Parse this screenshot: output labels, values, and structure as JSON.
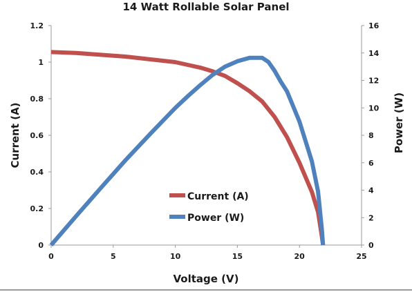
{
  "chart_data": {
    "type": "line",
    "title": "14 Watt Rollable Solar Panel",
    "xlabel": "Voltage (V)",
    "ylabel": "Current (A)",
    "y2label": "Power (W)",
    "xlim": [
      0,
      25
    ],
    "ylim": [
      0,
      1.2
    ],
    "y2lim": [
      0,
      16
    ],
    "x_ticks": [
      "0",
      "5",
      "10",
      "15",
      "20",
      "25"
    ],
    "y_ticks": [
      "0",
      "0.2",
      "0.4",
      "0.6",
      "0.8",
      "1",
      "1.2"
    ],
    "y2_ticks": [
      "0",
      "2",
      "4",
      "6",
      "8",
      "10",
      "12",
      "14",
      "16"
    ],
    "grid": false,
    "legend": "center",
    "series": [
      {
        "name": "Current (A)",
        "axis": "left",
        "color": "#c0504d",
        "points": [
          [
            0,
            1.055
          ],
          [
            2,
            1.05
          ],
          [
            4,
            1.04
          ],
          [
            6,
            1.03
          ],
          [
            8,
            1.015
          ],
          [
            10,
            1.0
          ],
          [
            11,
            0.985
          ],
          [
            12,
            0.97
          ],
          [
            13,
            0.95
          ],
          [
            14,
            0.925
          ],
          [
            15,
            0.885
          ],
          [
            16,
            0.84
          ],
          [
            17,
            0.785
          ],
          [
            18,
            0.7
          ],
          [
            19,
            0.59
          ],
          [
            20,
            0.45
          ],
          [
            21,
            0.29
          ],
          [
            21.5,
            0.18
          ],
          [
            21.8,
            0.05
          ],
          [
            21.9,
            0.0
          ]
        ]
      },
      {
        "name": "Power (W)",
        "axis": "right",
        "color": "#4f81bd",
        "points": [
          [
            0,
            0.0
          ],
          [
            2,
            2.1
          ],
          [
            4,
            4.16
          ],
          [
            6,
            6.2
          ],
          [
            8,
            8.12
          ],
          [
            10,
            10.0
          ],
          [
            11,
            10.85
          ],
          [
            12,
            11.65
          ],
          [
            13,
            12.4
          ],
          [
            14,
            13.0
          ],
          [
            15,
            13.4
          ],
          [
            16,
            13.65
          ],
          [
            17,
            13.65
          ],
          [
            17.5,
            13.35
          ],
          [
            18,
            12.7
          ],
          [
            18.5,
            11.9
          ],
          [
            19,
            11.2
          ],
          [
            20,
            9.0
          ],
          [
            21,
            6.1
          ],
          [
            21.5,
            3.9
          ],
          [
            21.8,
            1.2
          ],
          [
            21.9,
            0.0
          ]
        ]
      }
    ]
  }
}
